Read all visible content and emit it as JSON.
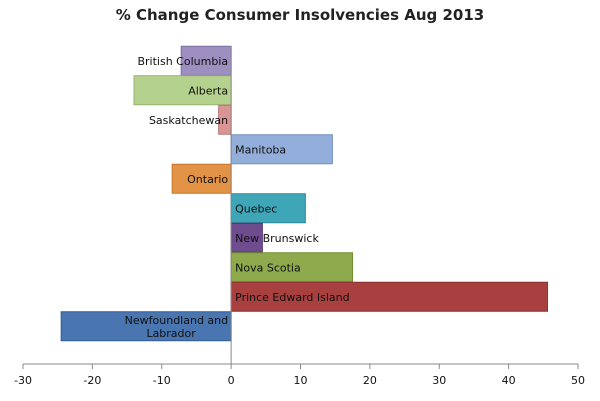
{
  "chart_data": {
    "type": "bar",
    "orientation": "horizontal",
    "title": "% Change Consumer Insolvencies Aug 2013",
    "xlabel": "",
    "ylabel": "",
    "xlim": [
      -30,
      50
    ],
    "x_ticks": [
      -30,
      -20,
      -10,
      0,
      10,
      20,
      30,
      40,
      50
    ],
    "grid": false,
    "legend": "none",
    "categories": [
      "British Columbia",
      "Alberta",
      "Saskatchewan",
      "Manitoba",
      "Ontario",
      "Quebec",
      "New Brunswick",
      "Nova Scotia",
      "Prince Edward Island",
      "Newfoundland  and\nLabrador"
    ],
    "values": [
      -7.2,
      -14,
      -1.8,
      14.6,
      -8.5,
      10.7,
      4.5,
      17.5,
      45.6,
      -24.5
    ],
    "colors": [
      "#9d8fc0",
      "#b5d18e",
      "#d99594",
      "#93aedb",
      "#e39346",
      "#3fa6b7",
      "#6e4c8e",
      "#8eaa4c",
      "#a8403f",
      "#4975b0"
    ],
    "borders": [
      "#7e71a1",
      "#96b36f",
      "#ba7776",
      "#7590bd",
      "#c47628",
      "#2d8898",
      "#523271",
      "#70902f",
      "#873030",
      "#335d93"
    ]
  }
}
